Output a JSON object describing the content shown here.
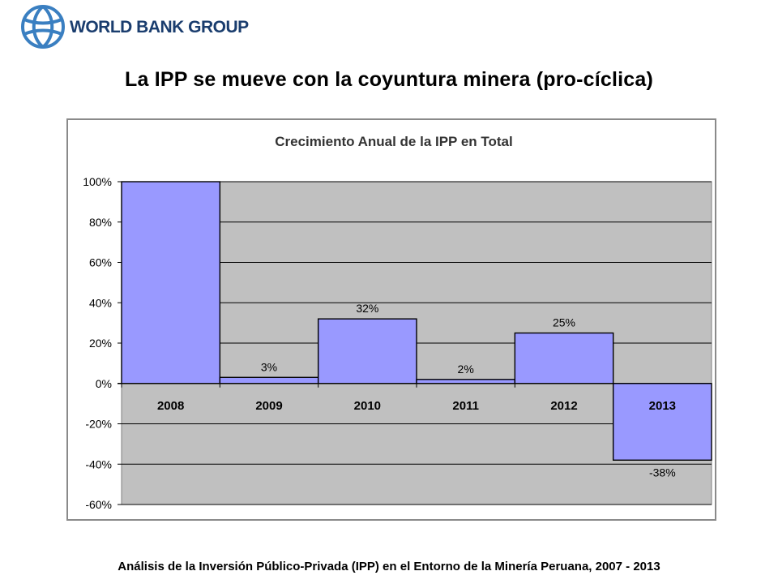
{
  "logo": {
    "text": "WORLD BANK GROUP",
    "icon": "globe-icon",
    "color": "#1a3d6e"
  },
  "slide_title": "La IPP se mueve con la coyuntura minera (pro-cíclica)",
  "footer": "Análisis de la Inversión Público-Privada (IPP) en el Entorno de la Minería Peruana, 2007 - 2013",
  "chart_data": {
    "type": "bar",
    "title": "Crecimiento Anual de la IPP en Total",
    "categories": [
      "2008",
      "2009",
      "2010",
      "2011",
      "2012",
      "2013"
    ],
    "values": [
      100,
      3,
      32,
      2,
      25,
      -38
    ],
    "data_labels": [
      "",
      "3%",
      "32%",
      "2%",
      "25%",
      "-38%"
    ],
    "ylim": [
      -60,
      100
    ],
    "yticks": [
      100,
      80,
      60,
      40,
      20,
      0,
      -20,
      -40,
      -60
    ],
    "ytick_labels": [
      "100%",
      "80%",
      "60%",
      "40%",
      "20%",
      "0%",
      "-20%",
      "-40%",
      "-60%"
    ],
    "xlabel": "",
    "ylabel": "",
    "grid": true,
    "legend": "none",
    "colors": {
      "bar_fill": "#9999ff",
      "bar_stroke": "#000000",
      "plot_background": "#c0c0c0",
      "gridline": "#000000"
    }
  }
}
